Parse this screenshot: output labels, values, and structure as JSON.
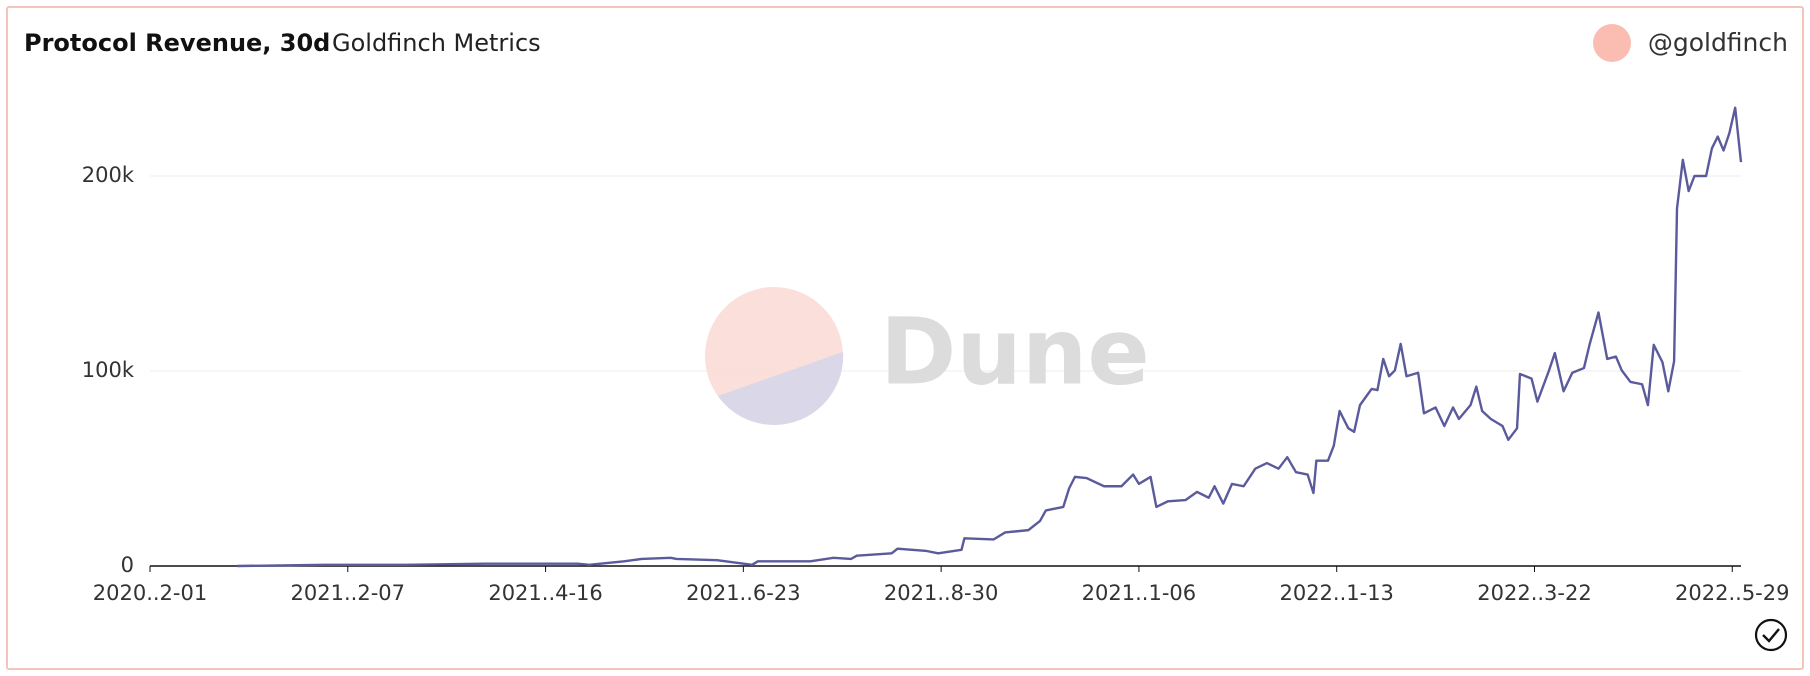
{
  "chart_data": {
    "type": "line",
    "title": "Protocol Revenue, 30d",
    "subtitle": "Goldfinch Metrics",
    "author": "@goldfinch",
    "watermark": "Dune",
    "xlim": [
      "2020-12-01",
      "2022-06-01"
    ],
    "xticks": [
      {
        "value": "2020-12-01",
        "label": "2020..2-01"
      },
      {
        "value": "2021-02-07",
        "label": "2021..2-07"
      },
      {
        "value": "2021-04-16",
        "label": "2021..4-16"
      },
      {
        "value": "2021-06-23",
        "label": "2021..6-23"
      },
      {
        "value": "2021-08-30",
        "label": "2021..8-30"
      },
      {
        "value": "2021-11-06",
        "label": "2021..1-06"
      },
      {
        "value": "2022-01-13",
        "label": "2022..1-13"
      },
      {
        "value": "2022-03-22",
        "label": "2022..3-22"
      },
      {
        "value": "2022-05-29",
        "label": "2022..5-29"
      }
    ],
    "ylim": [
      0,
      240000
    ],
    "yticks": [
      0,
      {
        "value": 100000,
        "label": "100k"
      },
      {
        "value": 200000,
        "label": "200k"
      }
    ],
    "grid": true,
    "x": [
      "2020-12-31",
      "2021-01-30",
      "2021-02-27",
      "2021-03-26",
      "2021-04-27",
      "2021-05-01",
      "2021-05-13",
      "2021-05-19",
      "2021-05-29",
      "2021-05-31",
      "2021-06-14",
      "2021-06-26",
      "2021-06-28",
      "2021-07-16",
      "2021-07-24",
      "2021-07-30",
      "2021-08-01",
      "2021-08-13",
      "2021-08-15",
      "2021-08-25",
      "2021-08-29",
      "2021-09-06",
      "2021-09-07",
      "2021-09-17",
      "2021-09-21",
      "2021-09-29",
      "2021-10-03",
      "2021-10-05",
      "2021-10-11",
      "2021-10-13",
      "2021-10-15",
      "2021-10-19",
      "2021-10-25",
      "2021-10-31",
      "2021-11-04",
      "2021-11-06",
      "2021-11-10",
      "2021-11-12",
      "2021-11-16",
      "2021-11-22",
      "2021-11-26",
      "2021-11-30",
      "2021-12-02",
      "2021-12-05",
      "2021-12-08",
      "2021-12-12",
      "2021-12-16",
      "2021-12-20",
      "2021-12-24",
      "2021-12-27",
      "2021-12-30",
      "2022-01-03",
      "2022-01-05",
      "2022-01-06",
      "2022-01-10",
      "2022-01-12",
      "2022-01-14",
      "2022-01-17",
      "2022-01-19",
      "2022-01-21",
      "2022-01-25",
      "2022-01-27",
      "2022-01-29",
      "2022-01-31",
      "2022-02-02",
      "2022-02-04",
      "2022-02-06",
      "2022-02-10",
      "2022-02-12",
      "2022-02-16",
      "2022-02-19",
      "2022-02-22",
      "2022-02-24",
      "2022-02-28",
      "2022-03-02",
      "2022-03-04",
      "2022-03-07",
      "2022-03-11",
      "2022-03-13",
      "2022-03-16",
      "2022-03-17",
      "2022-03-21",
      "2022-03-23",
      "2022-03-27",
      "2022-03-29",
      "2022-04-01",
      "2022-04-04",
      "2022-04-08",
      "2022-04-10",
      "2022-04-13",
      "2022-04-16",
      "2022-04-19",
      "2022-04-21",
      "2022-04-24",
      "2022-04-28",
      "2022-04-30",
      "2022-05-02",
      "2022-05-05",
      "2022-05-07",
      "2022-05-09",
      "2022-05-10",
      "2022-05-12",
      "2022-05-14",
      "2022-05-16",
      "2022-05-20",
      "2022-05-22",
      "2022-05-24",
      "2022-05-26",
      "2022-05-28",
      "2022-05-30",
      "2022-06-01"
    ],
    "series": [
      {
        "name": "Protocol Revenue, 30d",
        "color": "#5a5a9c",
        "values": [
          0,
          600,
          600,
          1200,
          1200,
          600,
          2400,
          3600,
          4200,
          3600,
          3000,
          600,
          2400,
          2400,
          4200,
          3600,
          5300,
          6500,
          8900,
          7700,
          6500,
          8300,
          14200,
          13600,
          17200,
          18400,
          23100,
          28500,
          30300,
          39800,
          45700,
          45100,
          40900,
          40900,
          46900,
          42100,
          45700,
          30300,
          33200,
          33800,
          38000,
          35000,
          40900,
          32000,
          42100,
          40900,
          49900,
          52800,
          49900,
          55800,
          48100,
          46900,
          37400,
          54000,
          54000,
          61700,
          79500,
          70600,
          68800,
          82500,
          90800,
          90200,
          106200,
          97300,
          100300,
          113900,
          97300,
          99100,
          78300,
          81300,
          71800,
          81300,
          75400,
          82500,
          92000,
          79500,
          75400,
          71800,
          64700,
          70600,
          98500,
          96100,
          84300,
          100300,
          109200,
          89600,
          99100,
          101500,
          113900,
          130000,
          106200,
          107400,
          100300,
          94400,
          93200,
          82500,
          113400,
          104500,
          89600,
          105000,
          183400,
          208300,
          192300,
          200000,
          200000,
          214200,
          220200,
          213100,
          222000,
          235000,
          207100
        ]
      }
    ]
  }
}
